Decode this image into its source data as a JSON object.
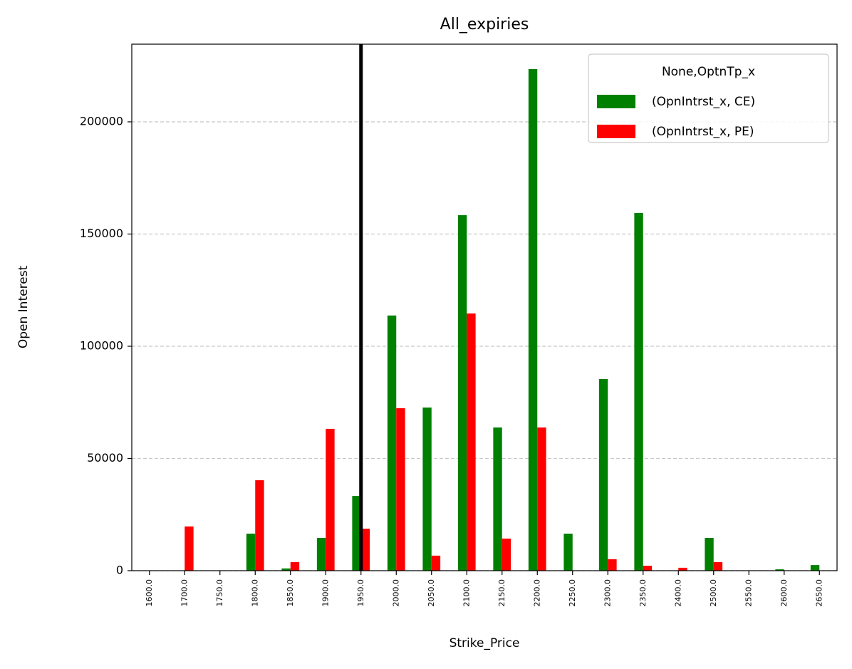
{
  "chart_data": {
    "type": "bar",
    "title": "All_expiries",
    "x_label": "Strike_Price",
    "y_label": "Open Interest",
    "categories": [
      "1600.0",
      "1700.0",
      "1750.0",
      "1800.0",
      "1850.0",
      "1900.0",
      "1950.0",
      "2000.0",
      "2050.0",
      "2100.0",
      "2150.0",
      "2200.0",
      "2250.0",
      "2300.0",
      "2350.0",
      "2400.0",
      "2500.0",
      "2550.0",
      "2600.0",
      "2650.0"
    ],
    "series": [
      {
        "name": "(OpnIntrst_x, CE)",
        "color": "#008000",
        "values": [
          0,
          0,
          0,
          16500,
          1000,
          14600,
          33300,
          113700,
          72700,
          158400,
          63800,
          223500,
          16500,
          85400,
          159400,
          0,
          14600,
          0,
          600,
          2500
        ]
      },
      {
        "name": "(OpnIntrst_x, PE)",
        "color": "#ff0000",
        "values": [
          0,
          19700,
          0,
          40300,
          3800,
          63200,
          18700,
          72400,
          6700,
          114600,
          14300,
          63800,
          0,
          5100,
          2200,
          1300,
          3800,
          0,
          0,
          0
        ]
      }
    ],
    "legend_title": "None,OptnTp_x",
    "legend_position": "upper right",
    "vline": "1950.0",
    "vline_color": "#000000",
    "ylim": [
      0,
      234600
    ],
    "yticks": [
      0,
      50000,
      100000,
      150000,
      200000
    ],
    "grid": true
  }
}
